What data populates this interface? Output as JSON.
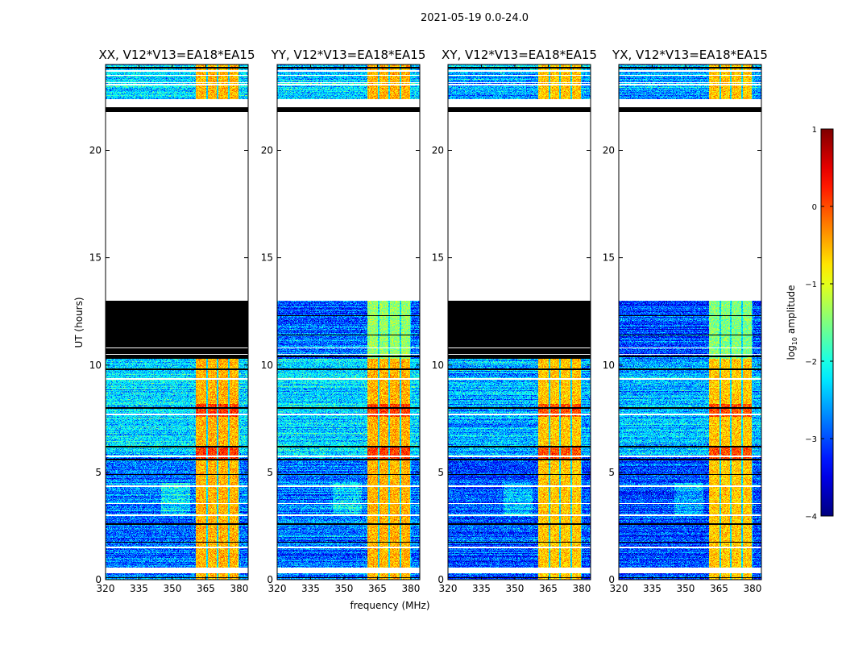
{
  "figure_title": "2021-05-19 0.0-24.0",
  "xlabel": "frequency (MHz)",
  "ylabel": "UT (hours)",
  "chart_data": [
    {
      "type": "heatmap",
      "title": "XX, V12*V13=EA18*EA15",
      "xlim": [
        320,
        384
      ],
      "ylim": [
        0,
        24
      ],
      "xticks": [
        320,
        335,
        350,
        365,
        380
      ],
      "yticks": [
        0,
        5,
        10,
        15,
        20
      ],
      "flagged_hours": [
        [
          0.3,
          0.55
        ],
        [
          13.0,
          21.8
        ],
        [
          22.0,
          22.4
        ]
      ],
      "zero_hours": [
        [
          10.3,
          13.0
        ],
        [
          21.8,
          22.0
        ]
      ],
      "band_MHz": [
        360.5,
        380
      ],
      "band_level": -0.5,
      "background_level": -2.8
    },
    {
      "type": "heatmap",
      "title": "YY, V12*V13=EA18*EA15",
      "xlim": [
        320,
        384
      ],
      "ylim": [
        0,
        24
      ],
      "xticks": [
        320,
        335,
        350,
        365,
        380
      ],
      "yticks": [
        0,
        5,
        10,
        15,
        20
      ],
      "flagged_hours": [
        [
          0.3,
          0.55
        ],
        [
          13.0,
          21.8
        ],
        [
          22.0,
          22.4
        ]
      ],
      "zero_hours": [
        [
          21.8,
          22.0
        ]
      ],
      "band_MHz": [
        360.5,
        380
      ],
      "band_level": -0.5,
      "background_level": -2.8
    },
    {
      "type": "heatmap",
      "title": "XY, V12*V13=EA18*EA15",
      "xlim": [
        320,
        384
      ],
      "ylim": [
        0,
        24
      ],
      "xticks": [
        320,
        335,
        350,
        365,
        380
      ],
      "yticks": [
        0,
        5,
        10,
        15,
        20
      ],
      "flagged_hours": [
        [
          0.3,
          0.55
        ],
        [
          13.0,
          21.8
        ],
        [
          22.0,
          22.4
        ]
      ],
      "zero_hours": [
        [
          10.3,
          13.0
        ],
        [
          21.8,
          22.0
        ]
      ],
      "band_MHz": [
        360.5,
        380
      ],
      "band_level": -0.6,
      "background_level": -3.0
    },
    {
      "type": "heatmap",
      "title": "YX, V12*V13=EA18*EA15",
      "xlim": [
        320,
        384
      ],
      "ylim": [
        0,
        24
      ],
      "xticks": [
        320,
        335,
        350,
        365,
        380
      ],
      "yticks": [
        0,
        5,
        10,
        15,
        20
      ],
      "flagged_hours": [
        [
          0.3,
          0.55
        ],
        [
          13.0,
          21.8
        ],
        [
          22.0,
          22.4
        ]
      ],
      "zero_hours": [
        [
          21.8,
          22.0
        ]
      ],
      "band_MHz": [
        360.5,
        380
      ],
      "band_level": -0.6,
      "background_level": -3.0
    }
  ],
  "colorbar": {
    "label_prefix": "log",
    "label_sub": "10",
    "label_suffix": " amplitude",
    "range": [
      -4,
      1
    ],
    "ticks": [
      -4,
      -3,
      -2,
      -1,
      0,
      1
    ],
    "tick_labels": [
      "−4",
      "−3",
      "−2",
      "−1",
      "0",
      "1"
    ],
    "colormap": "jet"
  }
}
